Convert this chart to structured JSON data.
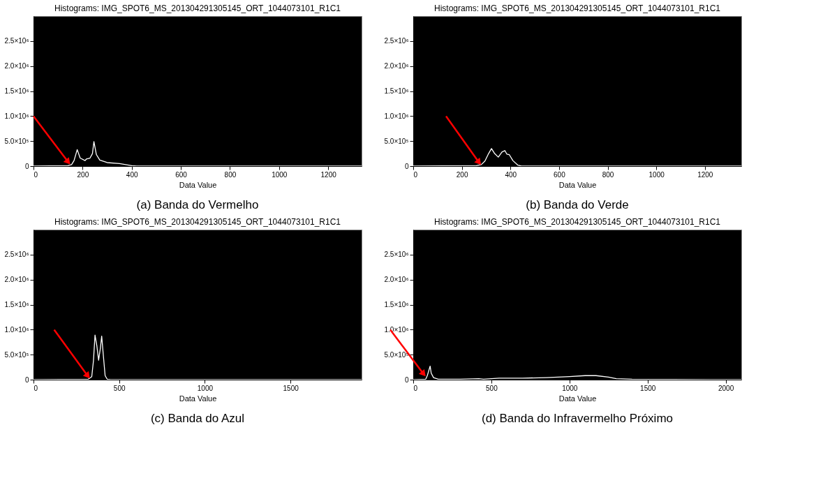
{
  "chart_data": [
    {
      "type": "line",
      "title": "Histograms: IMG_SPOT6_MS_201304291305145_ORT_1044073101_R1C1",
      "xlabel": "Data Value",
      "annotations": [
        "(a) Banda do Vermelho"
      ],
      "x": [
        0,
        140,
        155,
        165,
        178,
        190,
        210,
        215,
        230,
        240,
        246,
        256,
        270,
        300,
        350,
        400,
        420,
        1336
      ],
      "series": [
        {
          "color": "#ffffff",
          "values": [
            0,
            10000,
            30000,
            110000,
            330000,
            160000,
            110000,
            140000,
            160000,
            250000,
            490000,
            230000,
            120000,
            70000,
            50000,
            10000,
            0,
            0
          ]
        }
      ],
      "xlim": [
        0,
        1336
      ],
      "ylim": [
        0,
        3000000
      ],
      "xticks": [
        0,
        200,
        400,
        600,
        800,
        1000,
        1200
      ],
      "yticks": [
        0,
        {
          "value": 500000,
          "label": "5.0×10⁵"
        },
        {
          "value": 1000000,
          "label": "1.0×10⁶"
        },
        {
          "value": 1500000,
          "label": "1.5×10⁶"
        },
        {
          "value": 2000000,
          "label": "2.0×10⁶"
        },
        {
          "value": 2500000,
          "label": "2.5×10⁶"
        }
      ],
      "grid": false
    },
    {
      "type": "line",
      "title": "Histograms: IMG_SPOT6_MS_201304291305145_ORT_1044073101_R1C1",
      "xlabel": "Data Value",
      "annotations": [
        "(b) Banda do Verde"
      ],
      "x": [
        0,
        260,
        280,
        295,
        310,
        322,
        335,
        350,
        365,
        377,
        385,
        395,
        410,
        430,
        445,
        1350
      ],
      "series": [
        {
          "color": "#ffffff",
          "values": [
            0,
            10000,
            30000,
            100000,
            250000,
            350000,
            250000,
            180000,
            280000,
            310000,
            240000,
            230000,
            110000,
            20000,
            0,
            0
          ]
        }
      ],
      "xlim": [
        0,
        1350
      ],
      "ylim": [
        0,
        3000000
      ],
      "xticks": [
        0,
        200,
        400,
        600,
        800,
        1000,
        1200
      ],
      "yticks": [
        0,
        {
          "value": 500000,
          "label": "5.0×10⁵"
        },
        {
          "value": 1000000,
          "label": "1.0×10⁶"
        },
        {
          "value": 1500000,
          "label": "1.5×10⁶"
        },
        {
          "value": 2000000,
          "label": "2.0×10⁶"
        },
        {
          "value": 2500000,
          "label": "2.5×10⁶"
        }
      ],
      "grid": false
    },
    {
      "type": "line",
      "title": "Histograms: IMG_SPOT6_MS_201304291305145_ORT_1044073101_R1C1",
      "xlabel": "Data Value",
      "annotations": [
        "(c) Banda do Azul"
      ],
      "x": [
        0,
        320,
        340,
        350,
        359,
        370,
        380,
        390,
        398,
        408,
        418,
        430,
        450,
        1915
      ],
      "series": [
        {
          "color": "#ffffff",
          "values": [
            0,
            10000,
            60000,
            380000,
            890000,
            670000,
            390000,
            620000,
            870000,
            470000,
            80000,
            10000,
            0,
            0
          ]
        }
      ],
      "xlim": [
        0,
        1915
      ],
      "ylim": [
        0,
        3000000
      ],
      "xticks": [
        0,
        500,
        1000,
        1500
      ],
      "yticks": [
        0,
        {
          "value": 500000,
          "label": "5.0×10⁵"
        },
        {
          "value": 1000000,
          "label": "1.0×10⁶"
        },
        {
          "value": 1500000,
          "label": "1.5×10⁶"
        },
        {
          "value": 2000000,
          "label": "2.0×10⁶"
        },
        {
          "value": 2500000,
          "label": "2.5×10⁶"
        }
      ],
      "grid": false
    },
    {
      "type": "line",
      "title": "Histograms: IMG_SPOT6_MS_201304291305145_ORT_1044073101_R1C1",
      "xlabel": "Data Value",
      "annotations": [
        "(d) Banda do Infravermelho Próximo"
      ],
      "x": [
        0,
        80,
        90,
        108,
        115,
        130,
        160,
        300,
        420,
        450,
        550,
        700,
        850,
        1000,
        1100,
        1170,
        1250,
        1300,
        1400,
        2100
      ],
      "series": [
        {
          "color": "#ffffff",
          "values": [
            0,
            10000,
            80000,
            270000,
            130000,
            40000,
            10000,
            10000,
            20000,
            10000,
            30000,
            30000,
            40000,
            60000,
            80000,
            80000,
            50000,
            20000,
            10000,
            0
          ]
        }
      ],
      "xlim": [
        0,
        2100
      ],
      "ylim": [
        0,
        3000000
      ],
      "xticks": [
        0,
        500,
        1000,
        1500,
        2000
      ],
      "yticks": [
        0,
        {
          "value": 500000,
          "label": "5.0×10⁵"
        },
        {
          "value": 1000000,
          "label": "1.0×10⁶"
        },
        {
          "value": 1500000,
          "label": "1.5×10⁶"
        },
        {
          "value": 2000000,
          "label": "2.0×10⁶"
        },
        {
          "value": 2500000,
          "label": "2.5×10⁶"
        }
      ],
      "grid": false
    }
  ]
}
